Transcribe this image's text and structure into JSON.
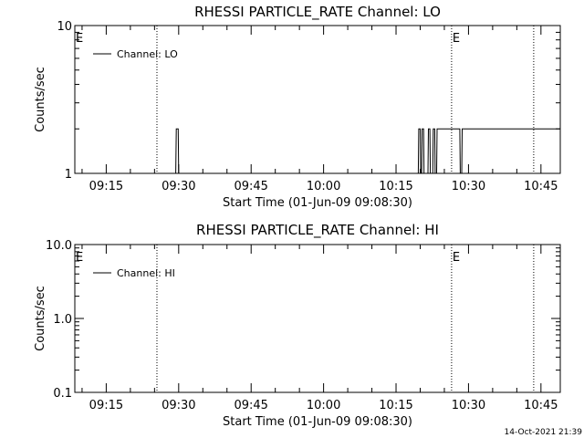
{
  "chart_data": [
    {
      "type": "line",
      "title": "RHESSI PARTICLE_RATE Channel: LO",
      "xlabel": "Start Time (01-Jun-09 09:08:30)",
      "ylabel": "Counts/sec",
      "yscale": "log",
      "ylim": [
        1,
        10
      ],
      "y_tick_labels": [
        "1",
        "10"
      ],
      "x_tick_labels": [
        "09:15",
        "09:30",
        "09:45",
        "10:00",
        "10:15",
        "10:30",
        "10:45"
      ],
      "x_tick_minutes": [
        15,
        30,
        45,
        60,
        75,
        90,
        105
      ],
      "xlim_minutes": [
        8.5,
        109
      ],
      "legend": {
        "placement": "top-left",
        "entries": [
          "Channel: LO"
        ]
      },
      "event_markers": [
        {
          "minute": 25.5,
          "label": ""
        },
        {
          "minute": 86.5,
          "label": "E"
        },
        {
          "minute": 103.5,
          "label": ""
        }
      ],
      "edge_label": "E",
      "series": [
        {
          "name": "Channel: LO",
          "x": [
            8.5,
            29.4,
            29.5,
            29.9,
            30.0,
            79.6,
            79.7,
            80.0,
            80.1,
            80.3,
            80.4,
            80.7,
            80.8,
            81.6,
            81.7,
            82.0,
            82.1,
            82.6,
            82.7,
            83.0,
            83.1,
            83.4,
            83.5,
            88.2,
            88.3,
            88.6,
            88.7,
            109
          ],
          "y": [
            1,
            1,
            2,
            2,
            1,
            1,
            2,
            2,
            1,
            1,
            2,
            2,
            1,
            1,
            2,
            2,
            1,
            1,
            2,
            2,
            1,
            1,
            2,
            2,
            1,
            1,
            2,
            2
          ]
        }
      ]
    },
    {
      "type": "line",
      "title": "RHESSI PARTICLE_RATE Channel: HI",
      "xlabel": "Start Time (01-Jun-09 09:08:30)",
      "ylabel": "Counts/sec",
      "yscale": "log",
      "ylim": [
        0.1,
        10
      ],
      "y_tick_labels": [
        "0.1",
        "1.0",
        "10.0"
      ],
      "x_tick_labels": [
        "09:15",
        "09:30",
        "09:45",
        "10:00",
        "10:15",
        "10:30",
        "10:45"
      ],
      "x_tick_minutes": [
        15,
        30,
        45,
        60,
        75,
        90,
        105
      ],
      "xlim_minutes": [
        8.5,
        109
      ],
      "legend": {
        "placement": "top-left",
        "entries": [
          "Channel: HI"
        ]
      },
      "event_markers": [
        {
          "minute": 25.5,
          "label": ""
        },
        {
          "minute": 86.5,
          "label": "E"
        },
        {
          "minute": 103.5,
          "label": ""
        }
      ],
      "edge_label": "E",
      "series": [
        {
          "name": "Channel: HI",
          "x": [],
          "y": []
        }
      ]
    }
  ],
  "footer": {
    "timestamp": "14-Oct-2021 21:39"
  }
}
